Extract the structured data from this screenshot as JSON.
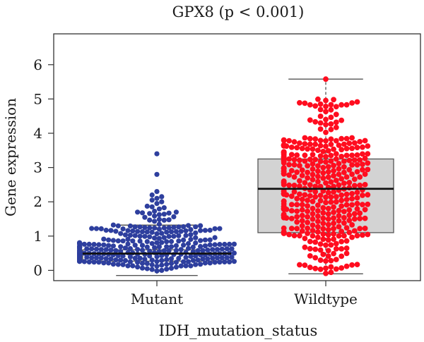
{
  "chart_data": {
    "type": "boxplot",
    "title": "GPX8 (p < 0.001)",
    "xlabel": "IDH_mutation_status",
    "ylabel": "Gene expression",
    "ylim": [
      -0.3,
      6.9
    ],
    "yticks": [
      0,
      1,
      2,
      3,
      4,
      5,
      6
    ],
    "categories": [
      "Mutant",
      "Wildtype"
    ],
    "grid": false,
    "legend": "none",
    "colors": {
      "Mutant": "#2e3f9e",
      "Wildtype": "#ff0d1f",
      "box_fill": "#d3d3d3",
      "box_stroke": "#555555"
    },
    "series": [
      {
        "category": "Mutant",
        "box": {
          "min": -0.15,
          "q1": 0.27,
          "median": 0.49,
          "q3": 0.6,
          "max": 1.32
        },
        "n_points": 420,
        "outliers": [
          3.4,
          2.8,
          2.3,
          2.2,
          2.15,
          2.1,
          2.05,
          2.0,
          1.95
        ]
      },
      {
        "category": "Wildtype",
        "box": {
          "min": -0.1,
          "q1": 1.1,
          "median": 2.38,
          "q3": 3.25,
          "max": 5.58
        },
        "n_points": 430,
        "outliers": [
          5.58
        ]
      }
    ]
  }
}
